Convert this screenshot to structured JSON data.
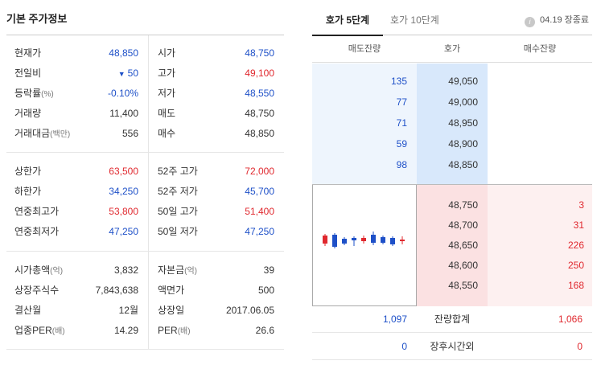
{
  "left_panel": {
    "title": "기본 주가정보",
    "block1": [
      {
        "label": "현재가",
        "label_sub": "",
        "value": "48,850",
        "value_color": "blue",
        "label2": "시가",
        "label2_sub": "",
        "value2": "48,750",
        "value2_color": "blue"
      },
      {
        "label": "전일비",
        "label_sub": "",
        "value": "50",
        "value_prefix": "▼",
        "value_color": "blue",
        "label2": "고가",
        "label2_sub": "",
        "value2": "49,100",
        "value2_color": "red"
      },
      {
        "label": "등락률",
        "label_sub": "(%)",
        "value": "-0.10%",
        "value_color": "blue",
        "label2": "저가",
        "label2_sub": "",
        "value2": "48,550",
        "value2_color": "blue"
      },
      {
        "label": "거래량",
        "label_sub": "",
        "value": "11,400",
        "value_color": "dark",
        "label2": "매도",
        "label2_sub": "",
        "value2": "48,750",
        "value2_color": "dark"
      },
      {
        "label": "거래대금",
        "label_sub": "(백만)",
        "value": "556",
        "value_color": "dark",
        "label2": "매수",
        "label2_sub": "",
        "value2": "48,850",
        "value2_color": "dark"
      }
    ],
    "block2": [
      {
        "label": "상한가",
        "label_sub": "",
        "value": "63,500",
        "value_color": "red",
        "label2": "52주 고가",
        "label2_sub": "",
        "value2": "72,000",
        "value2_color": "red"
      },
      {
        "label": "하한가",
        "label_sub": "",
        "value": "34,250",
        "value_color": "blue",
        "label2": "52주 저가",
        "label2_sub": "",
        "value2": "45,700",
        "value2_color": "blue"
      },
      {
        "label": "연중최고가",
        "label_sub": "",
        "value": "53,800",
        "value_color": "red",
        "label2": "50일 고가",
        "label2_sub": "",
        "value2": "51,400",
        "value2_color": "red"
      },
      {
        "label": "연중최저가",
        "label_sub": "",
        "value": "47,250",
        "value_color": "blue",
        "label2": "50일 저가",
        "label2_sub": "",
        "value2": "47,250",
        "value2_color": "blue"
      }
    ],
    "block3": [
      {
        "label": "시가총액",
        "label_sub": "(억)",
        "value": "3,832",
        "value_color": "dark",
        "label2": "자본금",
        "label2_sub": "(억)",
        "value2": "39",
        "value2_color": "dark"
      },
      {
        "label": "상장주식수",
        "label_sub": "",
        "value": "7,843,638",
        "value_color": "dark",
        "label2": "액면가",
        "label2_sub": "",
        "value2": "500",
        "value2_color": "dark"
      },
      {
        "label": "결산월",
        "label_sub": "",
        "value": "12월",
        "value_color": "dark",
        "label2": "상장일",
        "label2_sub": "",
        "value2": "2017.06.05",
        "value2_color": "dark"
      },
      {
        "label": "업종PER",
        "label_sub": "(배)",
        "value": "14.29",
        "value_color": "dark",
        "label2": "PER",
        "label2_sub": "(배)",
        "value2": "26.6",
        "value2_color": "dark"
      }
    ]
  },
  "right_panel": {
    "tabs": [
      "호가 5단계",
      "호가 10단계"
    ],
    "status": "04.19 장종료",
    "info_icon": "i",
    "headers": [
      "매도잔량",
      "호가",
      "매수잔량"
    ],
    "asks": [
      {
        "qty": "135",
        "price": "49,050"
      },
      {
        "qty": "77",
        "price": "49,000"
      },
      {
        "qty": "71",
        "price": "48,950"
      },
      {
        "qty": "59",
        "price": "48,900"
      },
      {
        "qty": "98",
        "price": "48,850"
      }
    ],
    "bids": [
      {
        "price": "48,750",
        "qty": "3"
      },
      {
        "price": "48,700",
        "qty": "31"
      },
      {
        "price": "48,650",
        "qty": "226"
      },
      {
        "price": "48,600",
        "qty": "250"
      },
      {
        "price": "48,550",
        "qty": "168"
      }
    ],
    "totals": [
      {
        "ask": "1,097",
        "label": "잔량합계",
        "bid": "1,066"
      },
      {
        "ask": "0",
        "label": "장후시간외",
        "bid": "0"
      }
    ],
    "colors": {
      "red": "#e0282e",
      "blue": "#1e50c8"
    }
  }
}
